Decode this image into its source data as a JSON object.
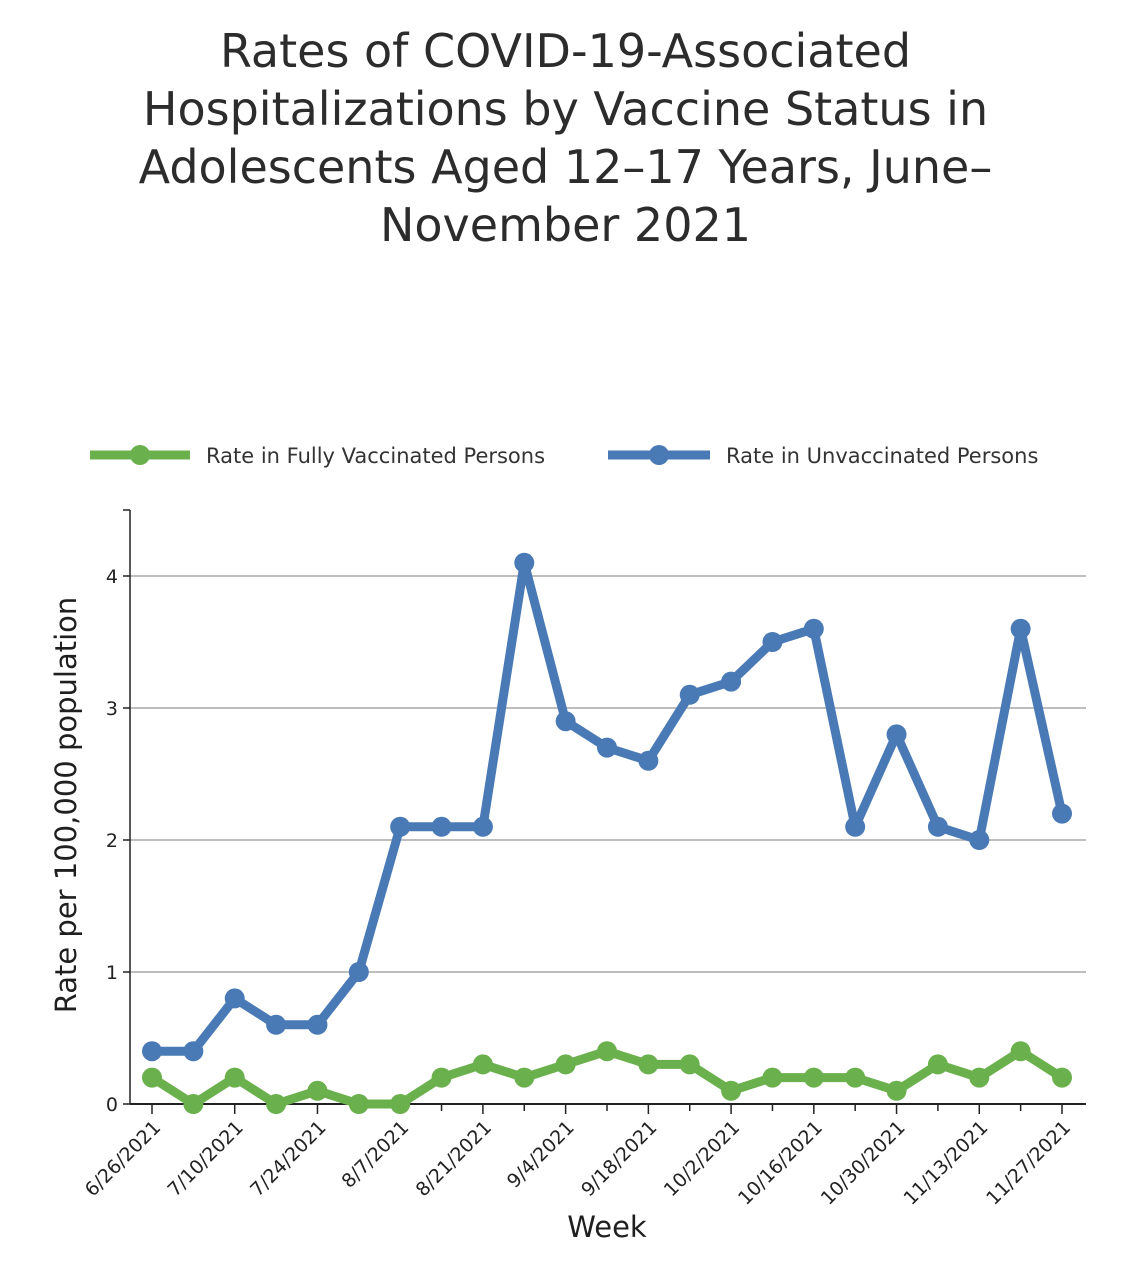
{
  "chart_data": {
    "type": "line",
    "title": "Rates of COVID-19-Associated Hospitalizations by Vaccine Status in Adolescents Aged 12–17 Years, June–November 2021",
    "xlabel": "Week",
    "ylabel": "Rate per 100,000 population",
    "ylim": [
      0,
      4.5
    ],
    "yticks": [
      0,
      1,
      2,
      3,
      4
    ],
    "grid": true,
    "legend_position": "top",
    "x": [
      "6/26/2021",
      "7/3/2021",
      "7/10/2021",
      "7/17/2021",
      "7/24/2021",
      "7/31/2021",
      "8/7/2021",
      "8/14/2021",
      "8/21/2021",
      "8/28/2021",
      "9/4/2021",
      "9/11/2021",
      "9/18/2021",
      "9/25/2021",
      "10/2/2021",
      "10/9/2021",
      "10/16/2021",
      "10/23/2021",
      "10/30/2021",
      "11/6/2021",
      "11/13/2021",
      "11/20/2021",
      "11/27/2021"
    ],
    "xtick_labels": [
      "6/26/2021",
      "7/10/2021",
      "7/24/2021",
      "8/7/2021",
      "8/21/2021",
      "9/4/2021",
      "9/18/2021",
      "10/2/2021",
      "10/16/2021",
      "10/30/2021",
      "11/13/2021",
      "11/27/2021"
    ],
    "series": [
      {
        "name": "Rate in Fully Vaccinated Persons",
        "color": "#6ab04c",
        "values": [
          0.2,
          0.0,
          0.2,
          0.0,
          0.1,
          0.0,
          0.0,
          0.2,
          0.3,
          0.2,
          0.3,
          0.4,
          0.3,
          0.3,
          0.1,
          0.2,
          0.2,
          0.2,
          0.1,
          0.3,
          0.2,
          0.4,
          0.2
        ]
      },
      {
        "name": "Rate in Unvaccinated Persons",
        "color": "#4a7ab5",
        "values": [
          0.4,
          0.4,
          0.8,
          0.6,
          0.6,
          1.0,
          2.1,
          2.1,
          2.1,
          4.1,
          2.9,
          2.7,
          2.6,
          3.1,
          3.2,
          3.5,
          3.6,
          2.1,
          2.8,
          2.1,
          2.0,
          3.6,
          2.2
        ]
      }
    ]
  }
}
